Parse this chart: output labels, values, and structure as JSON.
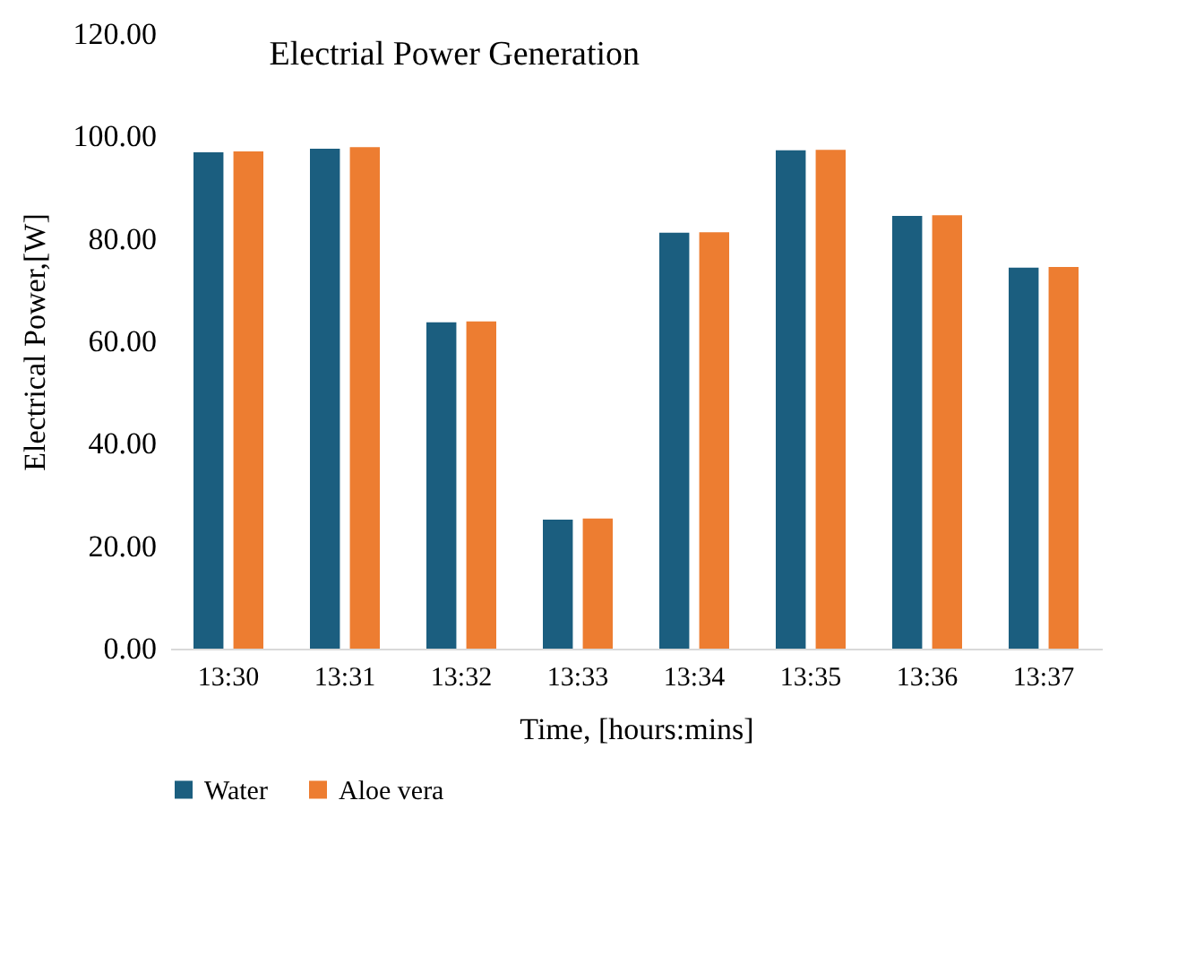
{
  "chart_data": {
    "type": "bar",
    "title": "Electrial Power Generation",
    "xlabel": "Time, [hours:mins]",
    "ylabel": "Electrical Power,[W]",
    "categories": [
      "13:30",
      "13:31",
      "13:32",
      "13:33",
      "13:34",
      "13:35",
      "13:36",
      "13:37"
    ],
    "series": [
      {
        "name": "Water",
        "color": "#1b5e7f",
        "values": [
          96.9,
          97.6,
          63.7,
          25.2,
          81.2,
          97.3,
          84.5,
          74.4
        ]
      },
      {
        "name": "Aloe vera",
        "color": "#ed7d31",
        "values": [
          97.1,
          97.9,
          63.9,
          25.4,
          81.3,
          97.4,
          84.6,
          74.5
        ]
      }
    ],
    "ylim": [
      0,
      120
    ],
    "yticks": [
      {
        "value": 0,
        "label": "0.00"
      },
      {
        "value": 20,
        "label": "20.00"
      },
      {
        "value": 40,
        "label": "40.00"
      },
      {
        "value": 60,
        "label": "60.00"
      },
      {
        "value": 80,
        "label": "80.00"
      },
      {
        "value": 100,
        "label": "100.00"
      },
      {
        "value": 120,
        "label": "120.00"
      }
    ],
    "grid": false,
    "legend": "bottom"
  }
}
